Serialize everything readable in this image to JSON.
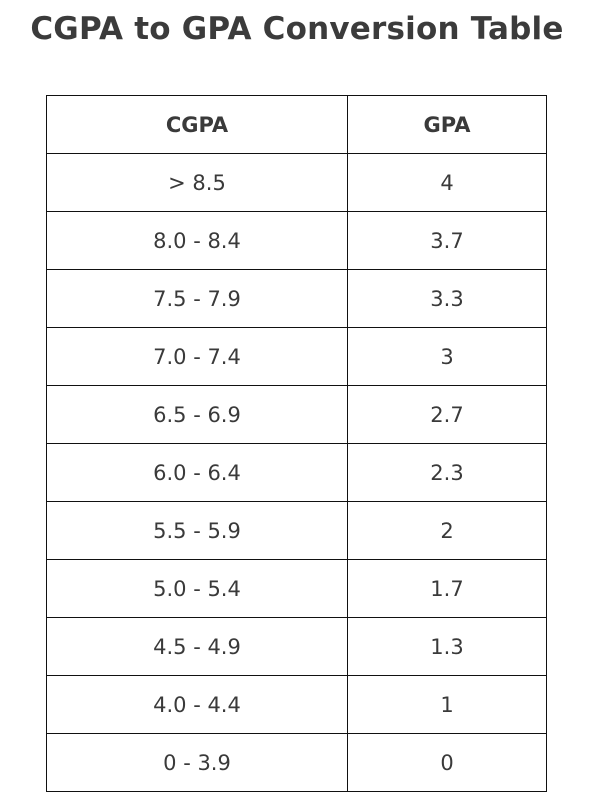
{
  "title": "CGPA to GPA Conversion Table",
  "table": {
    "headers": [
      "CGPA",
      "GPA"
    ],
    "rows": [
      {
        "cgpa": "> 8.5",
        "gpa": "4"
      },
      {
        "cgpa": "8.0 - 8.4",
        "gpa": "3.7"
      },
      {
        "cgpa": "7.5 - 7.9",
        "gpa": "3.3"
      },
      {
        "cgpa": "7.0 - 7.4",
        "gpa": "3"
      },
      {
        "cgpa": "6.5 - 6.9",
        "gpa": "2.7"
      },
      {
        "cgpa": "6.0 - 6.4",
        "gpa": "2.3"
      },
      {
        "cgpa": "5.5 - 5.9",
        "gpa": "2"
      },
      {
        "cgpa": "5.0 - 5.4",
        "gpa": "1.7"
      },
      {
        "cgpa": "4.5 - 4.9",
        "gpa": "1.3"
      },
      {
        "cgpa": "4.0 - 4.4",
        "gpa": "1"
      },
      {
        "cgpa": "0 - 3.9",
        "gpa": "0"
      }
    ]
  }
}
